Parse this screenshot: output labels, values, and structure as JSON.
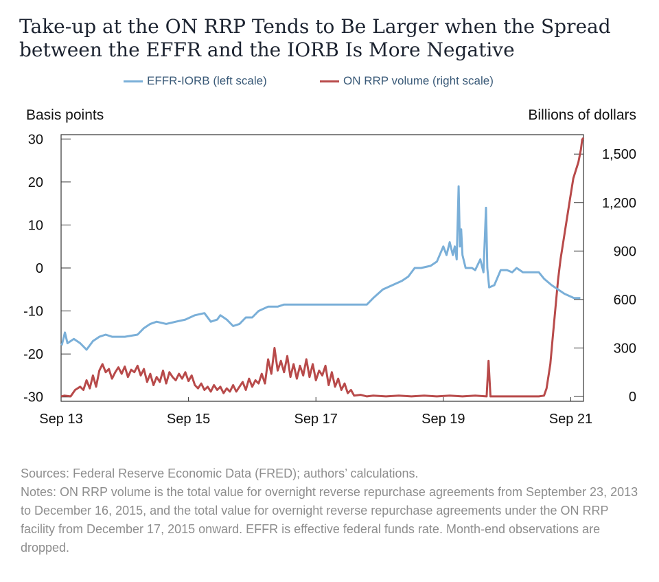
{
  "chart_data": {
    "type": "line",
    "title_lines": [
      "Take-up at the ON RRP Tends to Be Larger when the Spread",
      "between the EFFR and the IORB Is More Negative"
    ],
    "left_axis_label": "Basis points",
    "right_axis_label": "Billions of dollars",
    "x_ticks": [
      "Sep 13",
      "Sep 15",
      "Sep 17",
      "Sep 19",
      "Sep 21"
    ],
    "x_range": [
      2013.7,
      2021.9
    ],
    "y_left_ticks": [
      "30",
      "20",
      "10",
      "0",
      "-10",
      "-20",
      "-30"
    ],
    "y_left_range": [
      -31,
      31
    ],
    "y_right_ticks": [
      "1,500",
      "1,200",
      "900",
      "600",
      "300",
      "0"
    ],
    "y_right_range": [
      -30,
      1620
    ],
    "legend_position": "top-center",
    "series": [
      {
        "name": "EFFR-IORB (left scale)",
        "axis": "left",
        "color": "#7aafd8",
        "points": [
          [
            2013.71,
            -18
          ],
          [
            2013.76,
            -15
          ],
          [
            2013.8,
            -17.5
          ],
          [
            2013.9,
            -16.5
          ],
          [
            2014.0,
            -17.5
          ],
          [
            2014.1,
            -19
          ],
          [
            2014.2,
            -17
          ],
          [
            2014.3,
            -16
          ],
          [
            2014.4,
            -15.5
          ],
          [
            2014.5,
            -16
          ],
          [
            2014.7,
            -16
          ],
          [
            2014.9,
            -15.5
          ],
          [
            2015.0,
            -14
          ],
          [
            2015.1,
            -13
          ],
          [
            2015.2,
            -12.5
          ],
          [
            2015.35,
            -13
          ],
          [
            2015.5,
            -12.5
          ],
          [
            2015.65,
            -12
          ],
          [
            2015.8,
            -11
          ],
          [
            2015.95,
            -10.5
          ],
          [
            2016.05,
            -12.5
          ],
          [
            2016.15,
            -12
          ],
          [
            2016.2,
            -11
          ],
          [
            2016.3,
            -12
          ],
          [
            2016.4,
            -13.5
          ],
          [
            2016.5,
            -13
          ],
          [
            2016.6,
            -11.5
          ],
          [
            2016.7,
            -11.5
          ],
          [
            2016.8,
            -10
          ],
          [
            2016.95,
            -9
          ],
          [
            2017.1,
            -9
          ],
          [
            2017.2,
            -8.5
          ],
          [
            2017.5,
            -8.5
          ],
          [
            2017.8,
            -8.5
          ],
          [
            2018.05,
            -8.5
          ],
          [
            2018.3,
            -8.5
          ],
          [
            2018.5,
            -8.5
          ],
          [
            2018.6,
            -7
          ],
          [
            2018.75,
            -5
          ],
          [
            2018.9,
            -4
          ],
          [
            2019.05,
            -3
          ],
          [
            2019.15,
            -2
          ],
          [
            2019.25,
            0
          ],
          [
            2019.35,
            0
          ],
          [
            2019.5,
            0.5
          ],
          [
            2019.6,
            1.5
          ],
          [
            2019.7,
            5
          ],
          [
            2019.75,
            3
          ],
          [
            2019.8,
            6
          ],
          [
            2019.85,
            3
          ],
          [
            2019.88,
            5
          ],
          [
            2019.91,
            2
          ],
          [
            2019.94,
            19
          ],
          [
            2019.96,
            5
          ],
          [
            2019.98,
            9
          ],
          [
            2020.0,
            3
          ],
          [
            2020.05,
            0
          ],
          [
            2020.15,
            0
          ],
          [
            2020.2,
            -0.5
          ],
          [
            2020.28,
            2
          ],
          [
            2020.33,
            -1
          ],
          [
            2020.37,
            14
          ],
          [
            2020.39,
            0
          ],
          [
            2020.42,
            -4.5
          ],
          [
            2020.5,
            -4
          ],
          [
            2020.6,
            -0.5
          ],
          [
            2020.7,
            -0.5
          ],
          [
            2020.78,
            -1
          ],
          [
            2020.85,
            0
          ],
          [
            2020.95,
            -1
          ],
          [
            2021.1,
            -1
          ],
          [
            2021.2,
            -1
          ],
          [
            2021.28,
            -2.5
          ],
          [
            2021.4,
            -4
          ],
          [
            2021.5,
            -5
          ],
          [
            2021.6,
            -6
          ],
          [
            2021.75,
            -7
          ],
          [
            2021.85,
            -7
          ]
        ]
      },
      {
        "name": "ON RRP volume (right scale)",
        "axis": "right",
        "color": "#b84a4a",
        "points": [
          [
            2013.7,
            0
          ],
          [
            2013.75,
            5
          ],
          [
            2013.85,
            0
          ],
          [
            2013.92,
            40
          ],
          [
            2014.0,
            60
          ],
          [
            2014.05,
            40
          ],
          [
            2014.1,
            100
          ],
          [
            2014.15,
            50
          ],
          [
            2014.2,
            130
          ],
          [
            2014.25,
            60
          ],
          [
            2014.3,
            160
          ],
          [
            2014.35,
            200
          ],
          [
            2014.4,
            150
          ],
          [
            2014.45,
            170
          ],
          [
            2014.5,
            110
          ],
          [
            2014.55,
            150
          ],
          [
            2014.6,
            180
          ],
          [
            2014.65,
            140
          ],
          [
            2014.7,
            185
          ],
          [
            2014.75,
            120
          ],
          [
            2014.8,
            165
          ],
          [
            2014.85,
            150
          ],
          [
            2014.9,
            190
          ],
          [
            2014.95,
            130
          ],
          [
            2015.0,
            170
          ],
          [
            2015.05,
            90
          ],
          [
            2015.1,
            140
          ],
          [
            2015.15,
            70
          ],
          [
            2015.2,
            120
          ],
          [
            2015.25,
            90
          ],
          [
            2015.3,
            160
          ],
          [
            2015.35,
            80
          ],
          [
            2015.4,
            150
          ],
          [
            2015.45,
            120
          ],
          [
            2015.5,
            100
          ],
          [
            2015.55,
            140
          ],
          [
            2015.6,
            110
          ],
          [
            2015.65,
            150
          ],
          [
            2015.7,
            95
          ],
          [
            2015.75,
            130
          ],
          [
            2015.8,
            70
          ],
          [
            2015.85,
            50
          ],
          [
            2015.9,
            80
          ],
          [
            2015.95,
            40
          ],
          [
            2016.0,
            60
          ],
          [
            2016.05,
            30
          ],
          [
            2016.1,
            70
          ],
          [
            2016.15,
            40
          ],
          [
            2016.2,
            60
          ],
          [
            2016.25,
            20
          ],
          [
            2016.3,
            50
          ],
          [
            2016.35,
            30
          ],
          [
            2016.4,
            70
          ],
          [
            2016.45,
            30
          ],
          [
            2016.5,
            60
          ],
          [
            2016.55,
            90
          ],
          [
            2016.6,
            40
          ],
          [
            2016.65,
            110
          ],
          [
            2016.7,
            60
          ],
          [
            2016.75,
            100
          ],
          [
            2016.8,
            80
          ],
          [
            2016.85,
            140
          ],
          [
            2016.9,
            80
          ],
          [
            2016.95,
            230
          ],
          [
            2017.0,
            140
          ],
          [
            2017.05,
            300
          ],
          [
            2017.1,
            160
          ],
          [
            2017.15,
            220
          ],
          [
            2017.2,
            150
          ],
          [
            2017.25,
            250
          ],
          [
            2017.3,
            120
          ],
          [
            2017.35,
            200
          ],
          [
            2017.4,
            110
          ],
          [
            2017.45,
            190
          ],
          [
            2017.5,
            130
          ],
          [
            2017.55,
            230
          ],
          [
            2017.6,
            120
          ],
          [
            2017.65,
            200
          ],
          [
            2017.7,
            100
          ],
          [
            2017.75,
            160
          ],
          [
            2017.8,
            130
          ],
          [
            2017.85,
            190
          ],
          [
            2017.9,
            70
          ],
          [
            2017.95,
            150
          ],
          [
            2018.0,
            60
          ],
          [
            2018.05,
            110
          ],
          [
            2018.1,
            40
          ],
          [
            2018.15,
            80
          ],
          [
            2018.2,
            20
          ],
          [
            2018.25,
            40
          ],
          [
            2018.3,
            5
          ],
          [
            2018.4,
            10
          ],
          [
            2018.5,
            0
          ],
          [
            2018.6,
            5
          ],
          [
            2018.8,
            0
          ],
          [
            2019.0,
            5
          ],
          [
            2019.2,
            0
          ],
          [
            2019.4,
            5
          ],
          [
            2019.6,
            0
          ],
          [
            2019.8,
            5
          ],
          [
            2020.0,
            0
          ],
          [
            2020.2,
            5
          ],
          [
            2020.38,
            0
          ],
          [
            2020.41,
            220
          ],
          [
            2020.44,
            0
          ],
          [
            2020.6,
            0
          ],
          [
            2020.8,
            0
          ],
          [
            2021.0,
            0
          ],
          [
            2021.1,
            0
          ],
          [
            2021.2,
            0
          ],
          [
            2021.28,
            5
          ],
          [
            2021.32,
            50
          ],
          [
            2021.38,
            200
          ],
          [
            2021.42,
            380
          ],
          [
            2021.46,
            550
          ],
          [
            2021.5,
            720
          ],
          [
            2021.54,
            850
          ],
          [
            2021.58,
            950
          ],
          [
            2021.62,
            1050
          ],
          [
            2021.66,
            1150
          ],
          [
            2021.7,
            1250
          ],
          [
            2021.74,
            1350
          ],
          [
            2021.78,
            1400
          ],
          [
            2021.82,
            1450
          ],
          [
            2021.86,
            1530
          ],
          [
            2021.88,
            1590
          ],
          [
            2021.9,
            1600
          ]
        ]
      }
    ]
  },
  "notes": {
    "sources": "Sources: Federal Reserve Economic Data (FRED); authors’ calculations.",
    "notes_text": "Notes: ON RRP volume is the total value for overnight reverse repurchase agreements from September 23, 2013 to December 16, 2015, and the total value for overnight reverse repurchase agreements under the ON RRP facility from December 17, 2015 onward. EFFR is effective federal funds rate. Month-end observations are dropped."
  }
}
